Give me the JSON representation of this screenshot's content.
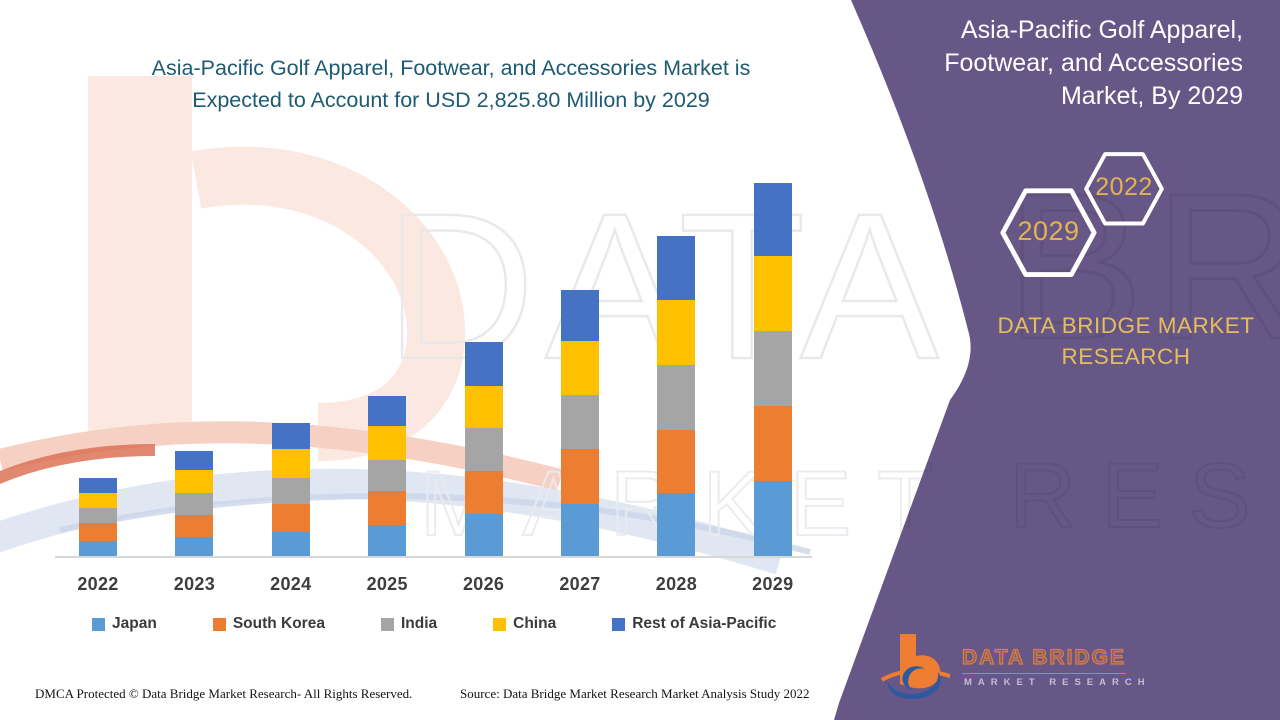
{
  "header": {
    "title_line1": "Asia-Pacific Golf Apparel, Footwear, and Accessories Market is",
    "title_line2": "Expected to Account for USD 2,825.80 Million by 2029"
  },
  "sidebar": {
    "title_line1": "Asia-Pacific Golf Apparel,",
    "title_line2": "Footwear, and Accessories",
    "title_line3": "Market, By 2029",
    "hexagon_top_year": "2022",
    "hexagon_bottom_year": "2029",
    "brand_line1": "DATA BRIDGE MARKET",
    "brand_line2": "RESEARCH",
    "logo_name": "DATA BRIDGE",
    "logo_subtitle": "MARKET RESEARCH"
  },
  "footer": {
    "dmca": "DMCA Protected © Data Bridge Market Research- All Rights Reserved.",
    "source": "Source: Data Bridge Market Research Market Analysis Study 2022"
  },
  "watermark": {
    "line1": "DATA BRIDGE",
    "line2": "MARKET RESEARCH"
  },
  "colors": {
    "purple_panel": "#675787",
    "title_teal": "#1F5A73",
    "gold": "#E2B44E",
    "japan": "#5B9BD5",
    "south_korea": "#ED7D31",
    "india": "#A5A5A5",
    "china": "#FFC000",
    "rest_of_asia_pacific": "#4472C4"
  },
  "chart_data": {
    "type": "bar",
    "stacked": true,
    "title": "Asia-Pacific Golf Apparel, Footwear, and Accessories Market",
    "unit": "USD Million",
    "categories": [
      "2022",
      "2023",
      "2024",
      "2025",
      "2026",
      "2027",
      "2028",
      "2029"
    ],
    "series": [
      {
        "name": "Japan",
        "color": "#5B9BD5",
        "values": [
          110,
          147,
          185,
          232,
          320,
          391,
          479,
          568
        ]
      },
      {
        "name": "South Korea",
        "color": "#ED7D31",
        "values": [
          138,
          164,
          207,
          260,
          323,
          416,
          479,
          568
        ]
      },
      {
        "name": "India",
        "color": "#A5A5A5",
        "values": [
          113,
          164,
          197,
          239,
          328,
          416,
          492,
          568
        ]
      },
      {
        "name": "China",
        "color": "#FFC000",
        "values": [
          113,
          176,
          220,
          253,
          316,
          404,
          492,
          568
        ]
      },
      {
        "name": "Rest of Asia-Pacific",
        "color": "#4472C4",
        "values": [
          119,
          147,
          202,
          227,
          333,
          391,
          480,
          553.8
        ]
      }
    ],
    "estimated_totals": [
      593,
      798,
      1011,
      1211,
      1620,
      2018,
      2422,
      2825.8
    ],
    "highlighted_value": "USD 2,825.80 Million by 2029",
    "ylim": [
      0,
      2900
    ],
    "gridlines": false,
    "y_axis_labels": false,
    "legend_position": "bottom"
  }
}
